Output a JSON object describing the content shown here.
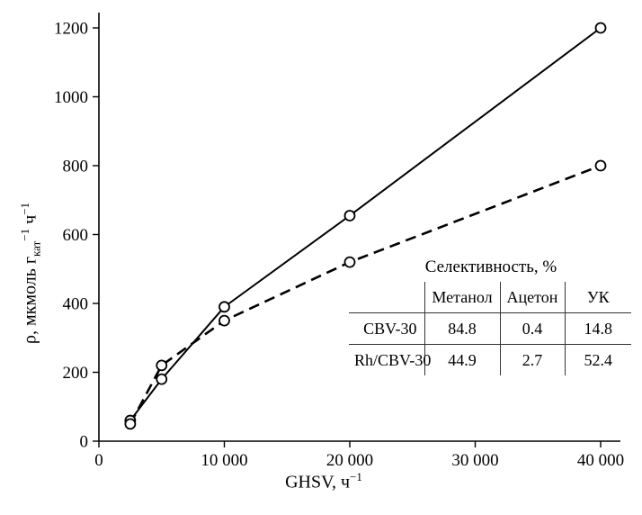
{
  "chart_data": {
    "type": "line",
    "title": "",
    "xlabel": "GHSV, ч⁻¹",
    "ylabel": "ρ, мкмоль г_кат⁻¹ ч⁻¹",
    "xlim": [
      0,
      41500
    ],
    "ylim": [
      0,
      1250
    ],
    "x_ticks": [
      0,
      10000,
      20000,
      30000,
      40000
    ],
    "x_tick_labels": [
      "0",
      "10 000",
      "20 000",
      "30 000",
      "40 000"
    ],
    "y_ticks": [
      0,
      200,
      400,
      600,
      800,
      1000,
      1200
    ],
    "grid": false,
    "legend": "none",
    "series": [
      {
        "name": "CBV-30",
        "style": "solid",
        "marker": "open-circle",
        "points": [
          [
            2500,
            60
          ],
          [
            5000,
            180
          ],
          [
            10000,
            390
          ],
          [
            20000,
            655
          ],
          [
            40000,
            1200
          ]
        ]
      },
      {
        "name": "Rh/CBV-30",
        "style": "dashed",
        "marker": "open-circle",
        "points": [
          [
            2500,
            50
          ],
          [
            5000,
            220
          ],
          [
            10000,
            350
          ],
          [
            20000,
            520
          ],
          [
            40000,
            800
          ]
        ]
      }
    ],
    "inset_table": {
      "title": "Селективность, %",
      "columns": [
        "",
        "Метанол",
        "Ацетон",
        "УК"
      ],
      "rows": [
        {
          "label": "CBV-30",
          "values": [
            "84.8",
            "0.4",
            "14.8"
          ]
        },
        {
          "label": "Rh/CBV-30",
          "values": [
            "44.9",
            "2.7",
            "52.4"
          ]
        }
      ]
    }
  },
  "labels": {
    "ylabel": {
      "base": "ρ, мкмоль г",
      "sub": "кат",
      "sup1": "−1",
      "mid": " ч",
      "sup2": "−1"
    },
    "xlabel": {
      "base": "GHSV, ч",
      "sup": "−1"
    }
  }
}
